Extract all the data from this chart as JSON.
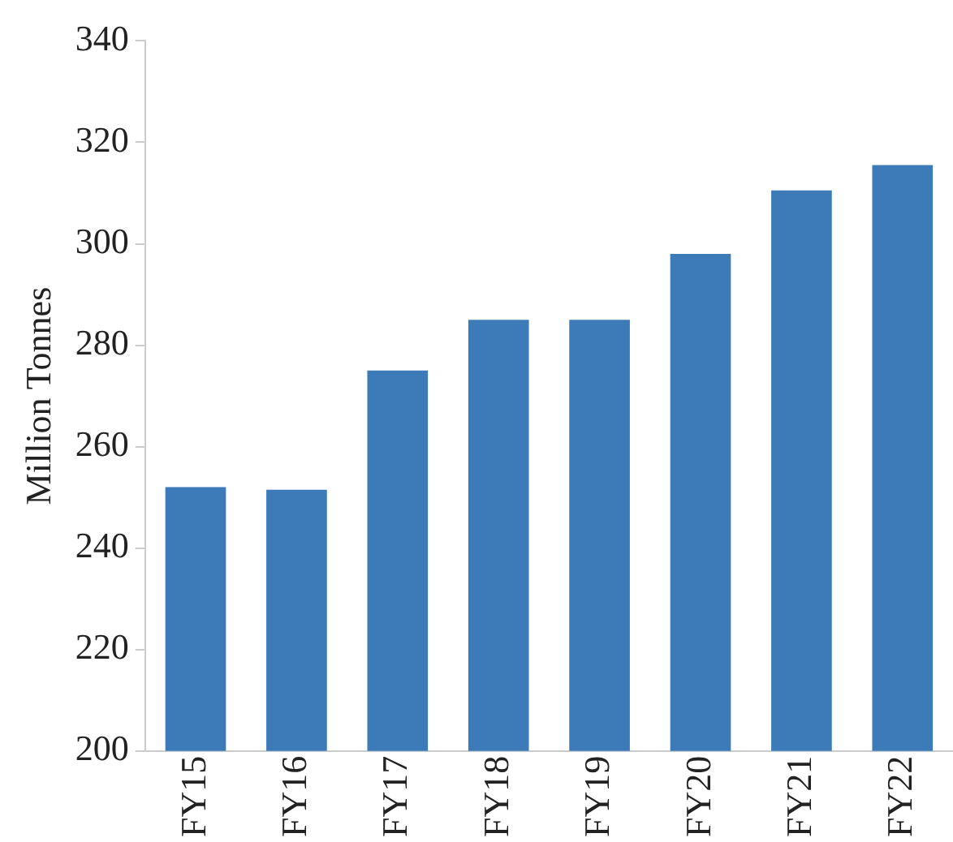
{
  "chart_data": {
    "type": "bar",
    "ylabel": "Million Tonnes",
    "categories": [
      "FY15",
      "FY16",
      "FY17",
      "FY18",
      "FY19",
      "FY20",
      "FY21",
      "FY22"
    ],
    "values": [
      252,
      251.5,
      275,
      285,
      285,
      298,
      310.5,
      315.5
    ],
    "color": "#3d7ab8",
    "ylim": [
      200,
      340
    ],
    "yticks": [
      200,
      220,
      240,
      260,
      280,
      300,
      320,
      340
    ],
    "grid": false,
    "legend": false
  }
}
